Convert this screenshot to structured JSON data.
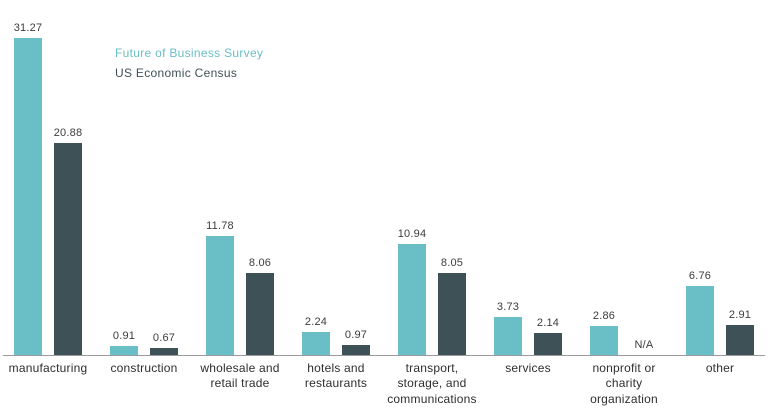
{
  "chart_data": {
    "type": "bar",
    "title": "",
    "xlabel": "",
    "ylabel": "",
    "categories": [
      "manufacturing",
      "construction",
      "wholesale and\nretail trade",
      "hotels and\nrestaurants",
      "transport,\nstorage, and\ncommunications",
      "services",
      "nonprofit or\ncharity\norganization",
      "other"
    ],
    "series": [
      {
        "name": "Future of Business Survey",
        "color": "#6abec6",
        "values": [
          31.27,
          0.91,
          11.78,
          2.24,
          10.94,
          3.73,
          2.86,
          6.76
        ],
        "labels": [
          "31.27",
          "0.91",
          "11.78",
          "2.24",
          "10.94",
          "3.73",
          "2.86",
          "6.76"
        ]
      },
      {
        "name": "US Economic Census",
        "color": "#3e5156",
        "values": [
          20.88,
          0.67,
          8.06,
          0.97,
          8.05,
          2.14,
          null,
          2.91
        ],
        "labels": [
          "20.88",
          "0.67",
          "8.06",
          "0.97",
          "8.05",
          "2.14",
          "N/A",
          "2.91"
        ]
      }
    ],
    "ylim": [
      0,
      35
    ],
    "grid": false,
    "legend_position": "top-left",
    "axis_color": "#9b9b9b",
    "value_label_color": "#3c3c3c"
  }
}
